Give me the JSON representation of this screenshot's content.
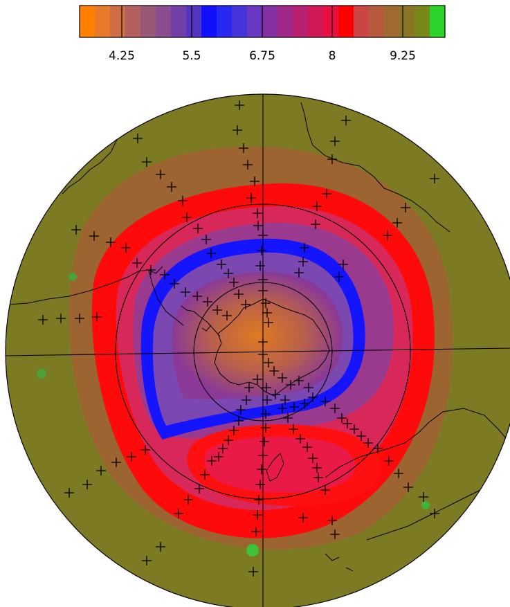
{
  "colorbar": {
    "tick_labels": [
      "4.25",
      "5.5",
      "6.75",
      "8",
      "9.25"
    ],
    "tick_values": [
      4.25,
      5.5,
      6.75,
      8,
      9.25
    ],
    "range": [
      3.25,
      10.0
    ],
    "colors": [
      "#ff8000",
      "#e8782a",
      "#cf6e44",
      "#b36060",
      "#9a5878",
      "#8a4e90",
      "#7040a8",
      "#5534c0",
      "#1010ff",
      "#2828f0",
      "#4535d8",
      "#6a38c0",
      "#8530a0",
      "#a02888",
      "#b82070",
      "#d01858",
      "#e81040",
      "#ff0000",
      "#cc4545",
      "#b55a3a",
      "#a06a30",
      "#8a7525",
      "#78861a",
      "#2ad22a"
    ]
  },
  "map": {
    "projection": "polar stereographic (south)",
    "marker": "plus",
    "colors": {
      "outer": "#7c7a22",
      "red_band": "#ff0a0a",
      "purple": "#8a3a96",
      "blue": "#1414ff",
      "orange_core": "#e07a20",
      "coast": "#000000"
    }
  }
}
